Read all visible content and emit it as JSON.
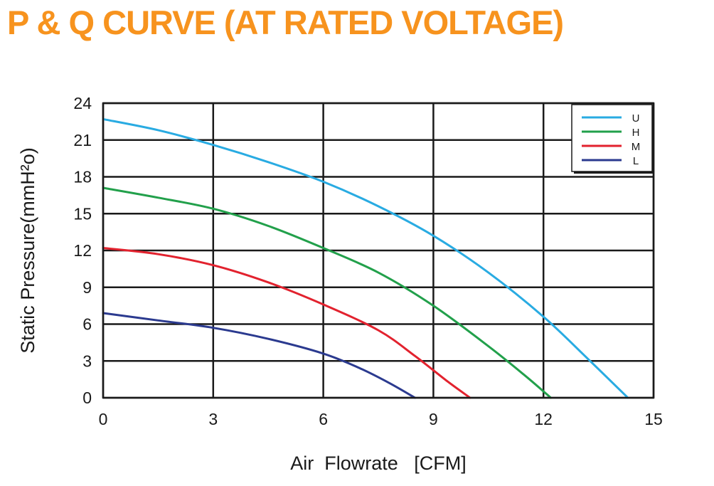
{
  "chart_data": {
    "type": "line",
    "title": "P & Q CURVE (AT RATED VOLTAGE)",
    "xlabel": "Air  Flowrate   [CFM]",
    "ylabel": "Static Pressure(mmH²o)",
    "xlim": [
      0,
      15
    ],
    "ylim": [
      0,
      24
    ],
    "xticks": [
      "0",
      "3",
      "6",
      "9",
      "12",
      "15"
    ],
    "yticks": [
      "0",
      "3",
      "6",
      "9",
      "12",
      "15",
      "18",
      "21",
      "24"
    ],
    "grid": true,
    "legend_position": "top-right",
    "series": [
      {
        "name": "U",
        "color": "#29abe2",
        "x": [
          0,
          1.5,
          3,
          4.5,
          6,
          7.5,
          9,
          10.5,
          12,
          13.2,
          14.3
        ],
        "y": [
          22.7,
          21.8,
          20.6,
          19.2,
          17.6,
          15.6,
          13.2,
          10.2,
          6.6,
          3.2,
          0
        ]
      },
      {
        "name": "H",
        "color": "#22a04b",
        "x": [
          0,
          1.5,
          3,
          4.5,
          6,
          7.5,
          9,
          10.5,
          11.5,
          12.2
        ],
        "y": [
          17.1,
          16.3,
          15.4,
          14.0,
          12.2,
          10.2,
          7.5,
          4.2,
          1.8,
          0
        ]
      },
      {
        "name": "M",
        "color": "#e2222e",
        "x": [
          0,
          1.5,
          3,
          4.5,
          6,
          7.5,
          8.5,
          9.4,
          10
        ],
        "y": [
          12.2,
          11.7,
          10.8,
          9.4,
          7.6,
          5.5,
          3.4,
          1.3,
          0
        ]
      },
      {
        "name": "L",
        "color": "#2b3a8f",
        "x": [
          0,
          1.5,
          3,
          4.5,
          6,
          7,
          7.8,
          8.5
        ],
        "y": [
          6.9,
          6.3,
          5.7,
          4.8,
          3.6,
          2.4,
          1.2,
          0
        ]
      }
    ]
  }
}
